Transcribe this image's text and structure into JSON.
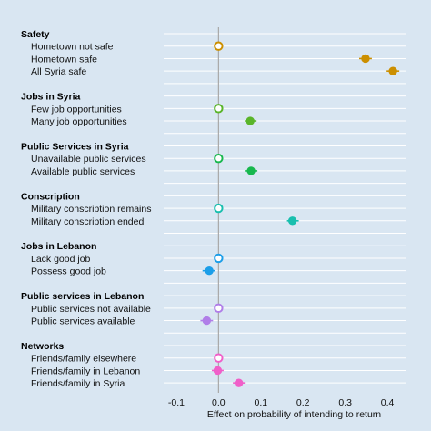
{
  "chart_data": {
    "type": "scatter",
    "title": "",
    "xlabel": "Effect on probability of intending to return",
    "ylabel": "",
    "xlim": [
      -0.13,
      0.445
    ],
    "xticks": [
      -0.1,
      0.0,
      0.1,
      0.2,
      0.3,
      0.4
    ],
    "xtick_labels": [
      "-0.1",
      "0.0",
      "0.1",
      "0.2",
      "0.3",
      "0.4"
    ],
    "reference_line": 0,
    "grid": true,
    "legend": "none",
    "groups": [
      {
        "label": "Safety",
        "color": "#cc8f00",
        "levels": [
          {
            "label": "Hometown not safe",
            "value": 0.0,
            "ci": [
              0.0,
              0.0
            ],
            "reference": true
          },
          {
            "label": "Hometown safe",
            "value": 0.348,
            "ci": [
              0.333,
              0.363
            ],
            "reference": false
          },
          {
            "label": "All Syria safe",
            "value": 0.413,
            "ci": [
              0.398,
              0.428
            ],
            "reference": false
          }
        ]
      },
      {
        "label": "Jobs in Syria",
        "color": "#5ab52a",
        "levels": [
          {
            "label": "Few job opportunities",
            "value": 0.0,
            "ci": [
              0.0,
              0.0
            ],
            "reference": true
          },
          {
            "label": "Many job opportunities",
            "value": 0.075,
            "ci": [
              0.062,
              0.09
            ],
            "reference": false
          }
        ]
      },
      {
        "label": "Public Services in Syria",
        "color": "#18b84e",
        "levels": [
          {
            "label": "Unavailable public services",
            "value": 0.0,
            "ci": [
              0.0,
              0.0
            ],
            "reference": true
          },
          {
            "label": "Available public services",
            "value": 0.077,
            "ci": [
              0.062,
              0.092
            ],
            "reference": false
          }
        ]
      },
      {
        "label": "Conscription",
        "color": "#19bfae",
        "levels": [
          {
            "label": "Military conscription remains",
            "value": 0.0,
            "ci": [
              0.0,
              0.0
            ],
            "reference": true
          },
          {
            "label": "Military conscription ended",
            "value": 0.175,
            "ci": [
              0.162,
              0.19
            ],
            "reference": false
          }
        ]
      },
      {
        "label": "Jobs in Lebanon",
        "color": "#1c9ee8",
        "levels": [
          {
            "label": "Lack good job",
            "value": 0.0,
            "ci": [
              0.0,
              0.0
            ],
            "reference": true
          },
          {
            "label": "Possess good job",
            "value": -0.022,
            "ci": [
              -0.038,
              -0.008
            ],
            "reference": false
          }
        ]
      },
      {
        "label": "Public services in Lebanon",
        "color": "#b07ee8",
        "levels": [
          {
            "label": "Public services not available",
            "value": 0.0,
            "ci": [
              0.0,
              0.0
            ],
            "reference": true
          },
          {
            "label": "Public services available",
            "value": -0.028,
            "ci": [
              -0.043,
              -0.013
            ],
            "reference": false
          }
        ]
      },
      {
        "label": "Networks",
        "color": "#f05fc9",
        "levels": [
          {
            "label": "Friends/family elsewhere",
            "value": 0.0,
            "ci": [
              0.0,
              0.0
            ],
            "reference": true
          },
          {
            "label": "Friends/family in Lebanon",
            "value": -0.002,
            "ci": [
              -0.016,
              0.012
            ],
            "reference": false
          },
          {
            "label": "Friends/family in Syria",
            "value": 0.048,
            "ci": [
              0.034,
              0.062
            ],
            "reference": false
          }
        ]
      }
    ]
  }
}
